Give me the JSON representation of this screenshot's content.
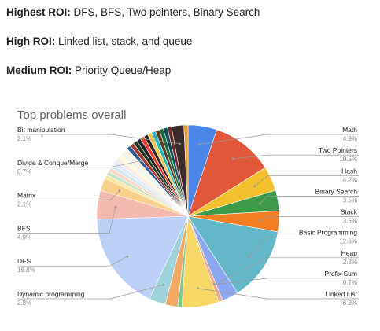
{
  "roi": [
    {
      "label": "Highest ROI:",
      "text": " DFS, BFS, Two pointers, Binary Search"
    },
    {
      "label": "High ROI:",
      "text": " Linked list, stack, and queue"
    },
    {
      "label": "Medium ROI:",
      "text": " Priority Queue/Heap"
    }
  ],
  "chart_data": {
    "type": "pie",
    "title": "Top problems overall",
    "slices": [
      {
        "name": "Math",
        "value": 4.9,
        "pct_label": "4.9%",
        "color": "#4a86e8",
        "labeled": true
      },
      {
        "name": "Two Pointers",
        "value": 10.5,
        "pct_label": "10.5%",
        "color": "#e0573a",
        "labeled": true
      },
      {
        "name": "Hash",
        "value": 4.2,
        "pct_label": "4.2%",
        "color": "#f5c02e",
        "labeled": true
      },
      {
        "name": "Binary Search",
        "value": 3.5,
        "pct_label": "3.5%",
        "color": "#3d9a4a",
        "labeled": true
      },
      {
        "name": "Stack",
        "value": 3.5,
        "pct_label": "3.5%",
        "color": "#f27d22",
        "labeled": true
      },
      {
        "name": "Basic Programming",
        "value": 12.6,
        "pct_label": "12.6%",
        "color": "#63b7c8",
        "labeled": true
      },
      {
        "name": "Heap",
        "value": 2.8,
        "pct_label": "2.8%",
        "color": "#8aa7f0",
        "labeled": true
      },
      {
        "name": "Prefix Sum",
        "value": 0.7,
        "pct_label": "0.7%",
        "color": "#f1a98e",
        "labeled": true
      },
      {
        "name": "Linked List",
        "value": 6.3,
        "pct_label": "6.3%",
        "color": "#f7d766",
        "labeled": true
      },
      {
        "name": "",
        "value": 0.7,
        "color": "#7cc98b",
        "labeled": false
      },
      {
        "name": "",
        "value": 2.1,
        "color": "#f4a865",
        "labeled": false
      },
      {
        "name": "Dynamic programming",
        "value": 2.8,
        "pct_label": "2.8%",
        "color": "#9fd3dc",
        "labeled": true
      },
      {
        "name": "DFS",
        "value": 16.8,
        "pct_label": "16.8%",
        "color": "#bcd0f7",
        "labeled": true
      },
      {
        "name": "BFS",
        "value": 4.9,
        "pct_label": "4.9%",
        "color": "#f2b9ae",
        "labeled": true
      },
      {
        "name": "Matrix",
        "value": 2.1,
        "pct_label": "2.1%",
        "color": "#f8d08c",
        "labeled": true
      },
      {
        "name": "",
        "value": 0.7,
        "color": "#fbe7a6",
        "labeled": false
      },
      {
        "name": "",
        "value": 0.7,
        "color": "#c8e6cc",
        "labeled": false
      },
      {
        "name": "",
        "value": 0.7,
        "color": "#fbd8c6",
        "labeled": false
      },
      {
        "name": "",
        "value": 0.7,
        "color": "#d4e9ee",
        "labeled": false
      },
      {
        "name": "",
        "value": 0.7,
        "color": "#e1ebfc",
        "labeled": false
      },
      {
        "name": "",
        "value": 0.7,
        "color": "#fde9e4",
        "labeled": false
      },
      {
        "name": "",
        "value": 0.7,
        "color": "#fff6de",
        "labeled": false
      },
      {
        "name": "",
        "value": 0.7,
        "color": "#eaf5ec",
        "labeled": false
      },
      {
        "name": "",
        "value": 0.7,
        "color": "#fdf0e4",
        "labeled": false
      },
      {
        "name": "Divide & Conque/Merge",
        "value": 0.7,
        "pct_label": "0.7%",
        "color": "#2c5f9e",
        "labeled": true
      },
      {
        "name": "",
        "value": 0.7,
        "color": "#a6362a",
        "labeled": false
      },
      {
        "name": "",
        "value": 0.7,
        "color": "#1f3b22",
        "labeled": false
      },
      {
        "name": "",
        "value": 0.7,
        "color": "#222222",
        "labeled": false
      },
      {
        "name": "",
        "value": 0.7,
        "color": "#e63b2e",
        "labeled": false
      },
      {
        "name": "",
        "value": 0.7,
        "color": "#2a2a2a",
        "labeled": false
      },
      {
        "name": "",
        "value": 0.7,
        "color": "#f0c84a",
        "labeled": false
      },
      {
        "name": "",
        "value": 0.7,
        "color": "#26b5c6",
        "labeled": false
      },
      {
        "name": "",
        "value": 0.7,
        "color": "#5c3a1e",
        "labeled": false
      },
      {
        "name": "",
        "value": 0.7,
        "color": "#1b6b3a",
        "labeled": false
      },
      {
        "name": "",
        "value": 0.7,
        "color": "#0c4a5c",
        "labeled": false
      },
      {
        "name": "",
        "value": 0.7,
        "color": "#6b2a2a",
        "labeled": false
      },
      {
        "name": "Bit manipulation",
        "value": 2.1,
        "pct_label": "2.1%",
        "color": "#3a2a2a",
        "labeled": true
      },
      {
        "name": "",
        "value": 0.7,
        "color": "#e89a2e",
        "labeled": false
      }
    ]
  }
}
